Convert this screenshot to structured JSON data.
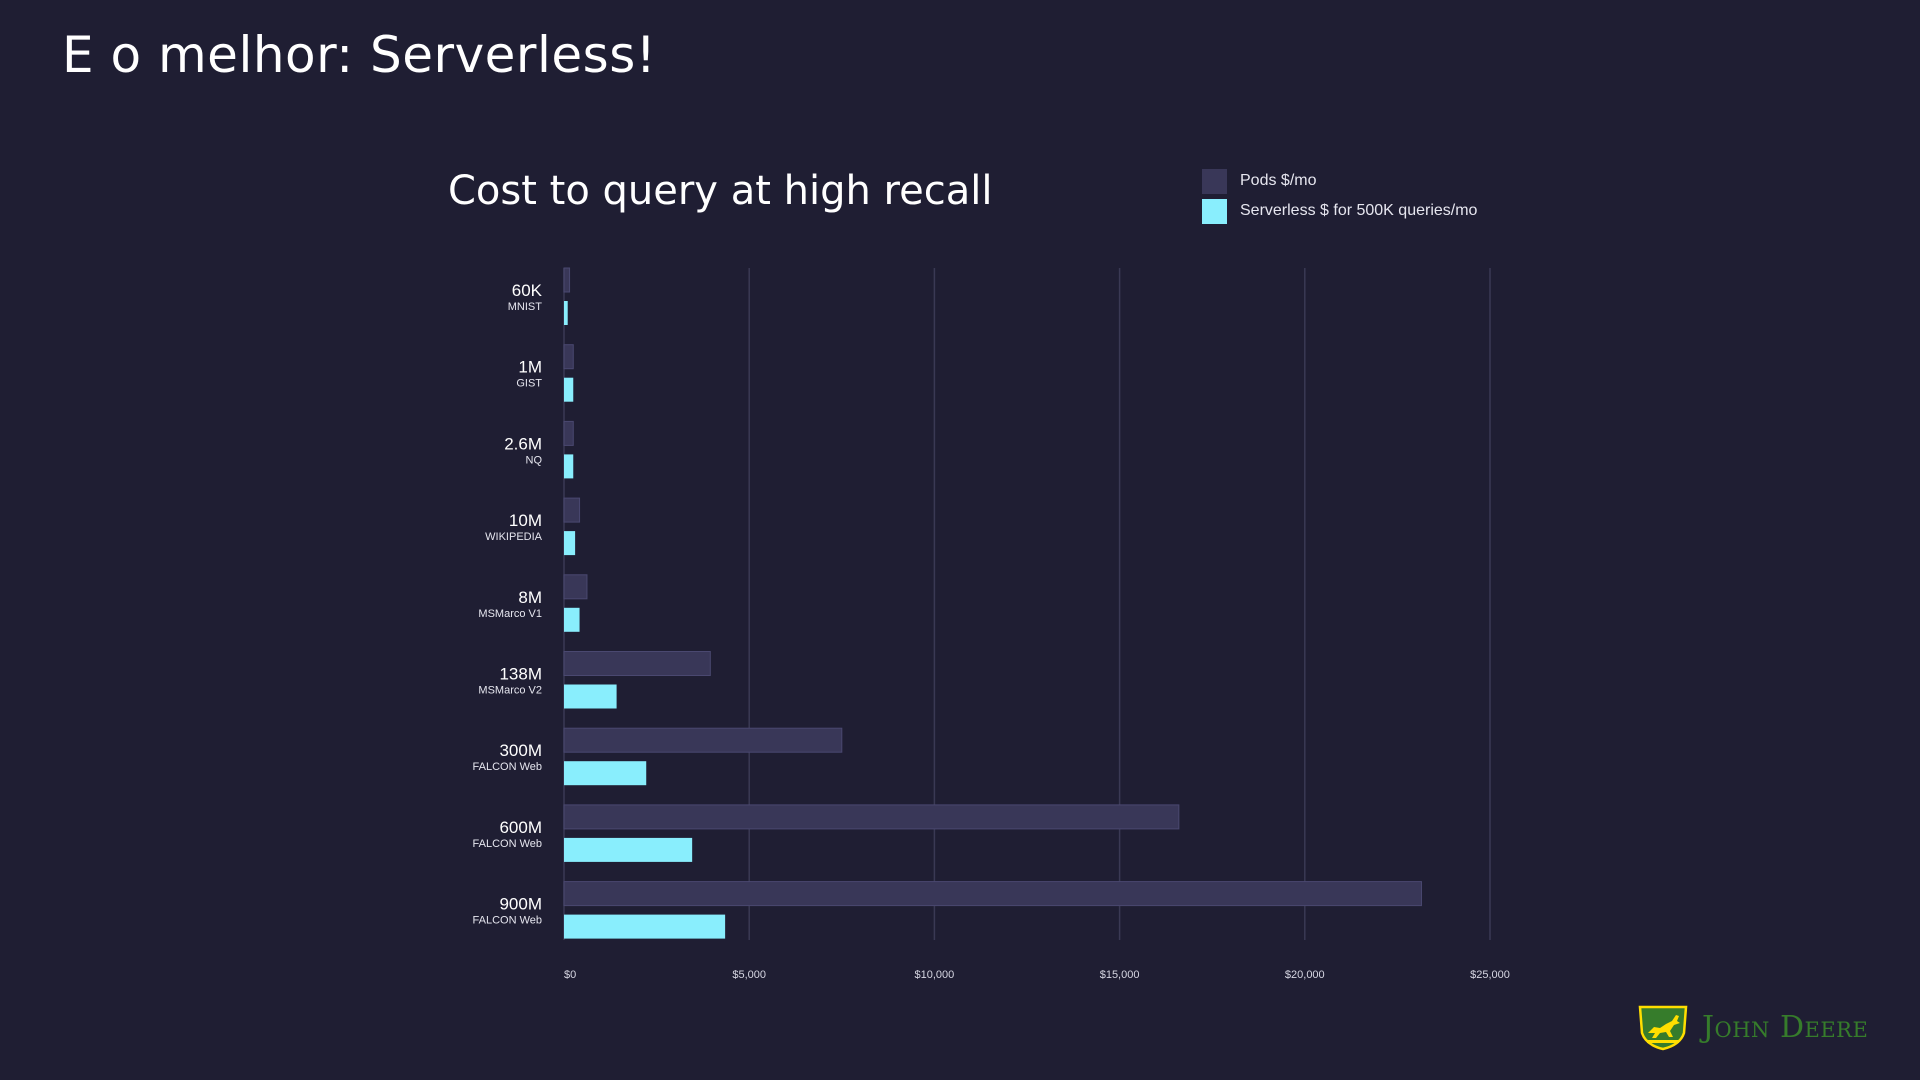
{
  "slide": {
    "title": "E o melhor: Serverless!"
  },
  "logo": {
    "text": "John Deere",
    "icon": "deer-logo-icon",
    "color_green": "#367c2b",
    "color_yellow": "#ffde00"
  },
  "colors": {
    "background": "#1f1e33",
    "pods": "#393758",
    "serverless": "#89eefd",
    "grid": "#3a3954"
  },
  "chart_data": {
    "type": "bar",
    "orientation": "horizontal",
    "title": "Cost to query at high recall",
    "categories": [
      {
        "label": "60K",
        "sublabel": "MNIST"
      },
      {
        "label": "1M",
        "sublabel": "GIST"
      },
      {
        "label": "2.6M",
        "sublabel": "NQ"
      },
      {
        "label": "10M",
        "sublabel": "WIKIPEDIA"
      },
      {
        "label": "8M",
        "sublabel": "MSMarco V1"
      },
      {
        "label": "138M",
        "sublabel": "MSMarco V2"
      },
      {
        "label": "300M",
        "sublabel": "FALCON Web"
      },
      {
        "label": "600M",
        "sublabel": "FALCON Web"
      },
      {
        "label": "900M",
        "sublabel": "FALCON Web"
      }
    ],
    "series": [
      {
        "name": "Pods $/mo",
        "color": "#393758",
        "values": [
          150,
          250,
          250,
          420,
          620,
          3950,
          7500,
          16600,
          23150
        ]
      },
      {
        "name": "Serverless $ for 500K queries/mo",
        "color": "#89eefd",
        "values": [
          100,
          250,
          250,
          300,
          420,
          1420,
          2220,
          3460,
          4350
        ]
      }
    ],
    "xlim": [
      0,
      25000
    ],
    "x_ticks": [
      {
        "value": 0,
        "label": "$0"
      },
      {
        "value": 5000,
        "label": "$5,000"
      },
      {
        "value": 10000,
        "label": "$10,000"
      },
      {
        "value": 15000,
        "label": "$15,000"
      },
      {
        "value": 20000,
        "label": "$20,000"
      },
      {
        "value": 25000,
        "label": "$25,000"
      }
    ],
    "grid": true,
    "legend_position": "top-right"
  }
}
